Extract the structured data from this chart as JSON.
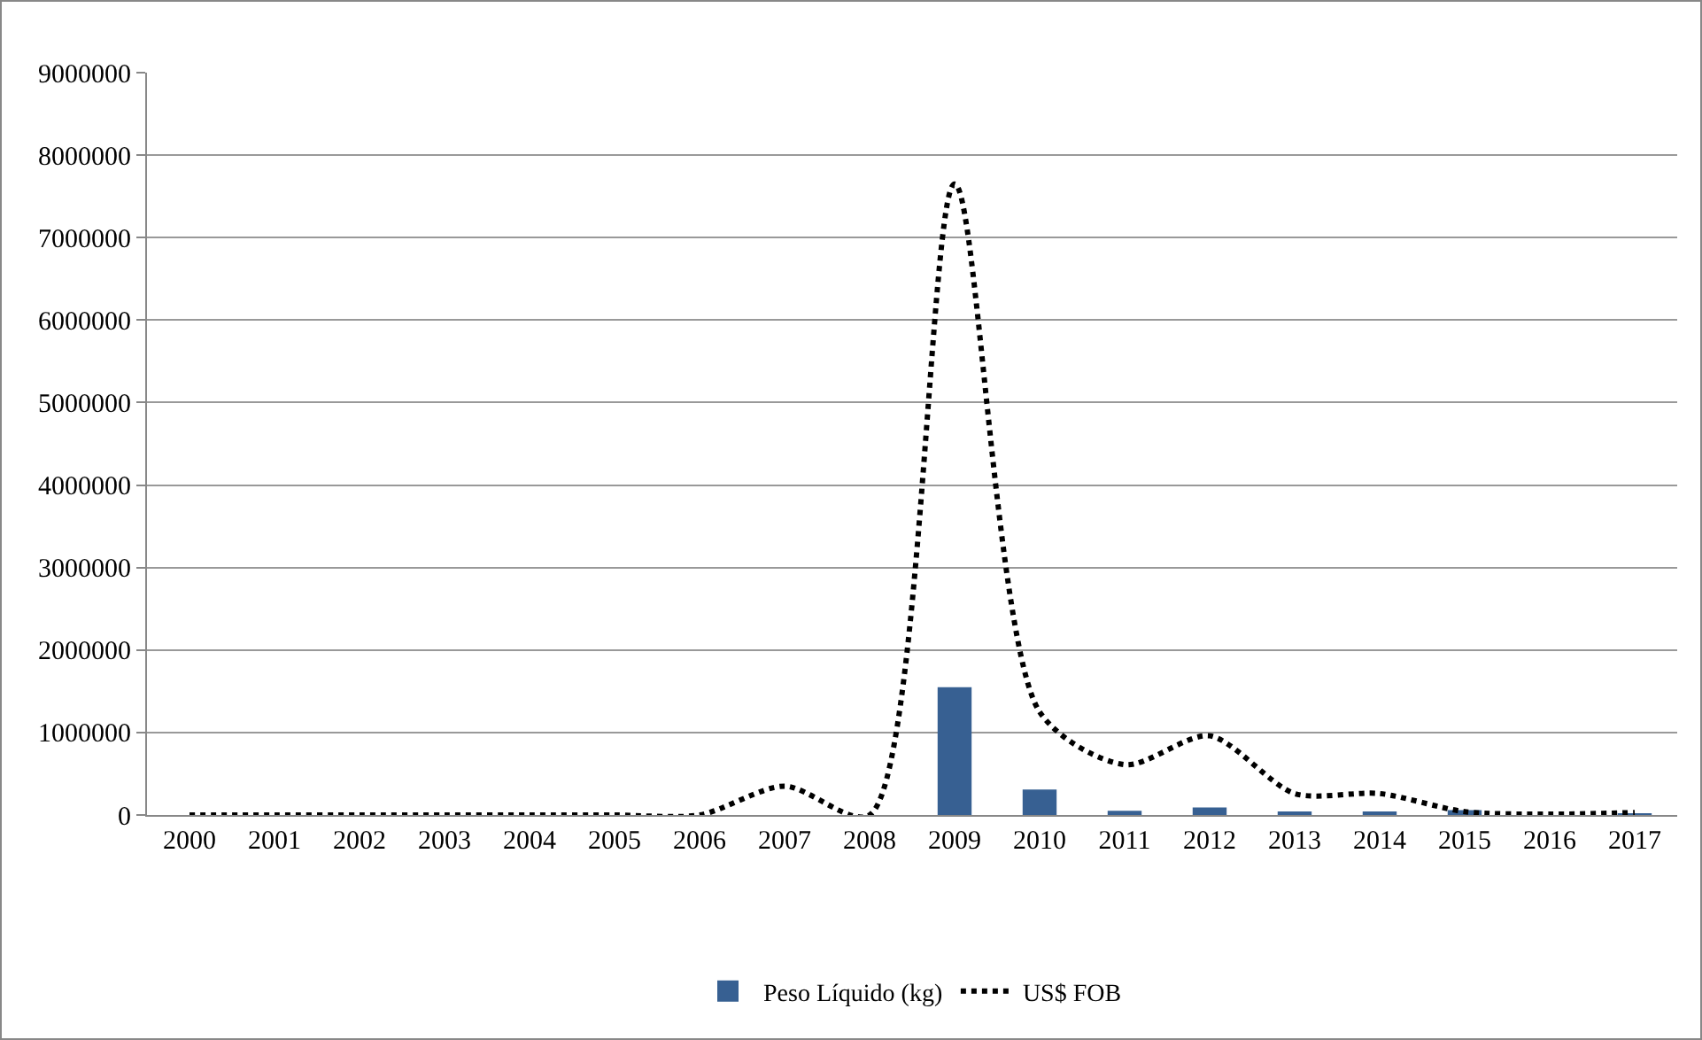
{
  "chart_data": {
    "type": "bar",
    "categories": [
      "2000",
      "2001",
      "2002",
      "2003",
      "2004",
      "2005",
      "2006",
      "2007",
      "2008",
      "2009",
      "2010",
      "2011",
      "2012",
      "2013",
      "2014",
      "2015",
      "2016",
      "2017"
    ],
    "series": [
      {
        "name": "Peso Líquido (kg)",
        "color": "#376092",
        "values": [
          0,
          0,
          0,
          0,
          0,
          0,
          0,
          0,
          0,
          1550000,
          310000,
          50000,
          90000,
          30000,
          30000,
          60000,
          0,
          20000
        ]
      },
      {
        "name": "US$ FOB",
        "type": "line",
        "color": "#000000",
        "line_style": "dotted",
        "values": [
          0,
          0,
          0,
          0,
          0,
          0,
          0,
          350000,
          0,
          7650000,
          1250000,
          610000,
          960000,
          260000,
          260000,
          40000,
          10000,
          30000
        ]
      }
    ],
    "ylim": [
      0,
      9000000
    ],
    "yticks": [
      0,
      1000000,
      2000000,
      3000000,
      4000000,
      5000000,
      6000000,
      7000000,
      8000000,
      9000000
    ],
    "grid": "y",
    "legend": "bottom"
  }
}
